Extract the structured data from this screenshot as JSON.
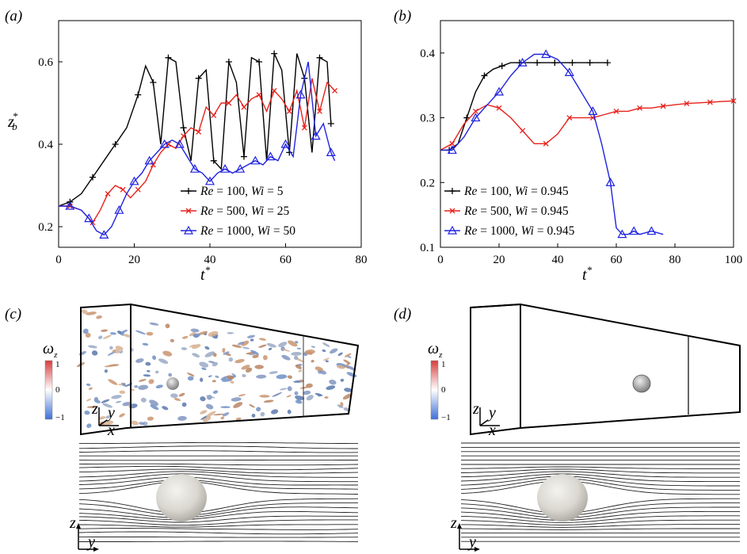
{
  "panels": [
    {
      "label": "(a)"
    },
    {
      "label": "(b)"
    },
    {
      "label": "(c)"
    },
    {
      "label": "(d)"
    }
  ],
  "colorbar": {
    "title": "ω",
    "title_sub": "z",
    "ticks": [
      "1",
      "0",
      "−1"
    ],
    "colors": [
      "#d53e3e",
      "#ffffff",
      "#3e6fd5"
    ]
  },
  "axes_labels": {
    "z": "z",
    "y": "y",
    "x": "x"
  },
  "chart_data": [
    {
      "type": "line",
      "xlabel": "t",
      "xlabel_sup": "*",
      "ylabel": "z",
      "ylabel_sub": "b",
      "ylabel_sup": "*",
      "xlim": [
        0,
        80
      ],
      "ylim": [
        0.15,
        0.7
      ],
      "xticks": [
        0,
        20,
        40,
        60,
        80
      ],
      "yticks": [
        0.2,
        0.4,
        0.6
      ],
      "legend_position": "bottom-right",
      "series": [
        {
          "name": "Re = 100, Wi = 5",
          "color": "#000000",
          "marker": "plus",
          "x": [
            0,
            3,
            6,
            9,
            12,
            15,
            18,
            21,
            23,
            25,
            27,
            29,
            31,
            33,
            35,
            37,
            39,
            41,
            43,
            45,
            47,
            49,
            51,
            53,
            55,
            57,
            59,
            61,
            63,
            65,
            67,
            69,
            71,
            72
          ],
          "y": [
            0.25,
            0.26,
            0.28,
            0.32,
            0.36,
            0.4,
            0.44,
            0.52,
            0.59,
            0.55,
            0.4,
            0.61,
            0.6,
            0.44,
            0.36,
            0.56,
            0.58,
            0.36,
            0.34,
            0.6,
            0.55,
            0.37,
            0.61,
            0.6,
            0.36,
            0.62,
            0.58,
            0.38,
            0.62,
            0.56,
            0.38,
            0.61,
            0.6,
            0.45
          ]
        },
        {
          "name": "Re = 500, Wi = 25",
          "color": "#e8211b",
          "marker": "x",
          "x": [
            0,
            3,
            6,
            9,
            11,
            13,
            15,
            17,
            19,
            21,
            23,
            25,
            27,
            29,
            31,
            33,
            35,
            37,
            39,
            41,
            43,
            45,
            47,
            49,
            51,
            53,
            55,
            57,
            59,
            61,
            63,
            65,
            67,
            69,
            71,
            73
          ],
          "y": [
            0.25,
            0.25,
            0.24,
            0.21,
            0.24,
            0.28,
            0.3,
            0.29,
            0.27,
            0.29,
            0.31,
            0.35,
            0.38,
            0.4,
            0.39,
            0.42,
            0.44,
            0.43,
            0.49,
            0.47,
            0.5,
            0.5,
            0.52,
            0.49,
            0.51,
            0.52,
            0.48,
            0.53,
            0.51,
            0.48,
            0.53,
            0.44,
            0.56,
            0.48,
            0.55,
            0.53
          ]
        },
        {
          "name": "Re = 1000, Wi = 50",
          "color": "#2023e0",
          "marker": "triangle",
          "x": [
            0,
            3,
            6,
            8,
            10,
            12,
            14,
            16,
            18,
            20,
            22,
            24,
            26,
            28,
            30,
            32,
            34,
            36,
            38,
            40,
            42,
            44,
            46,
            48,
            50,
            52,
            54,
            56,
            58,
            60,
            62,
            64,
            66,
            68,
            70,
            72,
            73
          ],
          "y": [
            0.25,
            0.25,
            0.24,
            0.22,
            0.19,
            0.18,
            0.2,
            0.24,
            0.28,
            0.31,
            0.33,
            0.36,
            0.38,
            0.4,
            0.41,
            0.4,
            0.37,
            0.34,
            0.33,
            0.31,
            0.33,
            0.34,
            0.33,
            0.34,
            0.35,
            0.36,
            0.35,
            0.37,
            0.36,
            0.4,
            0.37,
            0.52,
            0.6,
            0.42,
            0.45,
            0.38,
            0.36
          ]
        }
      ]
    },
    {
      "type": "line",
      "xlabel": "t",
      "xlabel_sup": "*",
      "xlim": [
        0,
        100
      ],
      "ylim": [
        0.1,
        0.45
      ],
      "xticks": [
        0,
        20,
        40,
        60,
        80,
        100
      ],
      "yticks": [
        0.1,
        0.2,
        0.3,
        0.4
      ],
      "legend_position": "bottom-left",
      "series": [
        {
          "name": "Re = 100, Wi = 0.945",
          "color": "#000000",
          "marker": "plus",
          "x": [
            0,
            3,
            6,
            9,
            12,
            15,
            18,
            21,
            24,
            27,
            30,
            33,
            36,
            39,
            42,
            45,
            48,
            51,
            54,
            57
          ],
          "y": [
            0.25,
            0.25,
            0.26,
            0.3,
            0.34,
            0.365,
            0.375,
            0.38,
            0.385,
            0.385,
            0.385,
            0.385,
            0.385,
            0.385,
            0.385,
            0.385,
            0.385,
            0.385,
            0.385,
            0.385
          ]
        },
        {
          "name": "Re = 500, Wi = 0.945",
          "color": "#e8211b",
          "marker": "x",
          "x": [
            0,
            4,
            8,
            12,
            16,
            20,
            24,
            28,
            32,
            36,
            40,
            44,
            48,
            52,
            56,
            60,
            64,
            68,
            72,
            76,
            80,
            84,
            88,
            92,
            96,
            100
          ],
          "y": [
            0.25,
            0.26,
            0.29,
            0.31,
            0.32,
            0.315,
            0.3,
            0.28,
            0.26,
            0.26,
            0.275,
            0.3,
            0.3,
            0.3,
            0.305,
            0.31,
            0.31,
            0.315,
            0.315,
            0.318,
            0.32,
            0.322,
            0.323,
            0.324,
            0.325,
            0.326
          ]
        },
        {
          "name": "Re = 1000, Wi = 0.945",
          "color": "#2023e0",
          "marker": "triangle",
          "x": [
            0,
            4,
            8,
            12,
            16,
            20,
            24,
            28,
            32,
            36,
            40,
            44,
            48,
            52,
            55,
            58,
            60,
            62,
            64,
            66,
            68,
            72,
            76
          ],
          "y": [
            0.25,
            0.25,
            0.27,
            0.3,
            0.32,
            0.34,
            0.365,
            0.385,
            0.398,
            0.398,
            0.39,
            0.37,
            0.34,
            0.31,
            0.26,
            0.2,
            0.13,
            0.12,
            0.12,
            0.125,
            0.12,
            0.125,
            0.12
          ]
        }
      ]
    }
  ]
}
